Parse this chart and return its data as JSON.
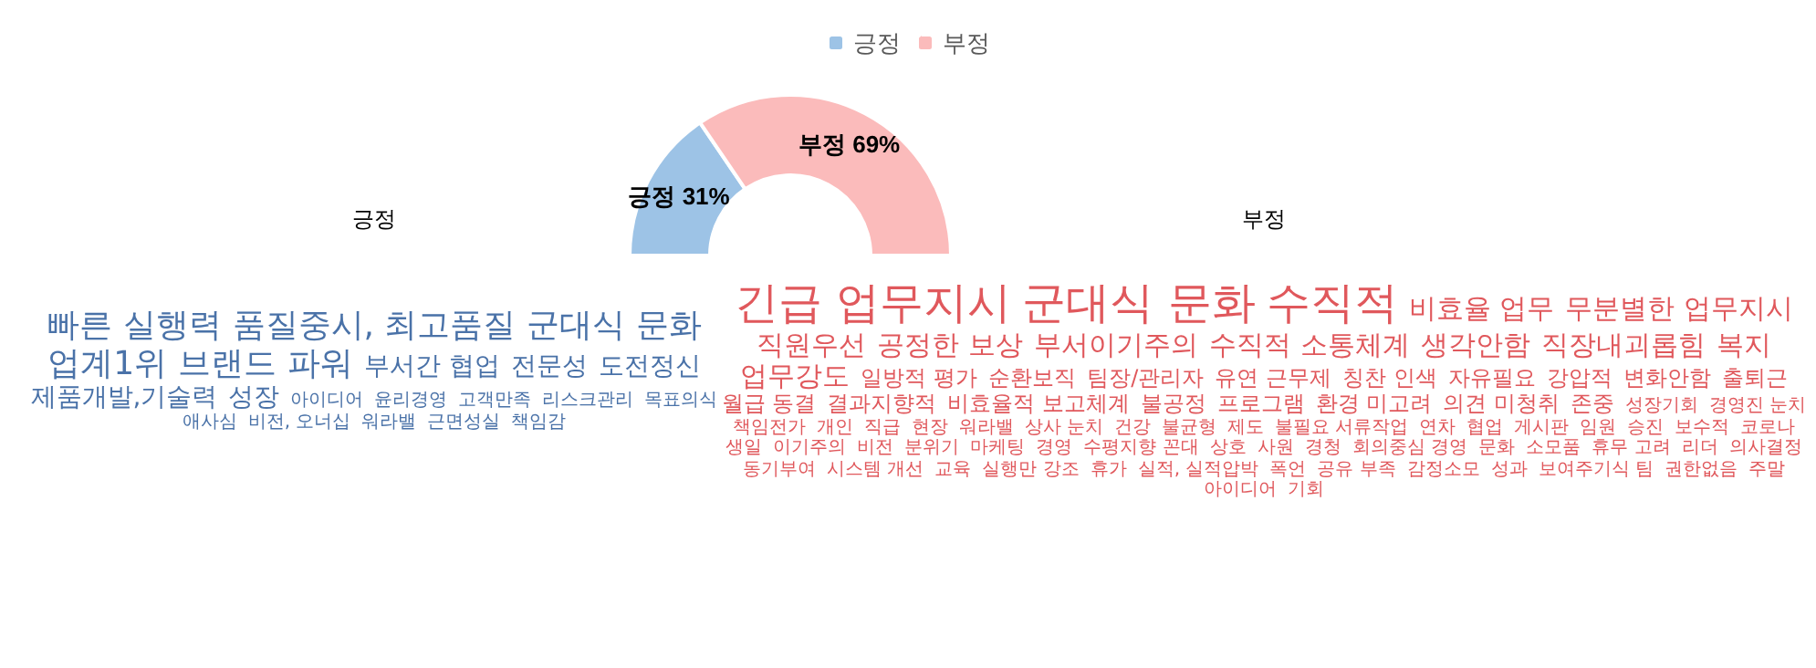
{
  "chart_data": [
    {
      "type": "donut",
      "categories": [
        "긍정",
        "부정"
      ],
      "values": [
        31,
        69
      ],
      "colors": [
        "#9dc3e6",
        "#fbbbbb"
      ],
      "legend": "top",
      "value_labels": [
        "31%",
        "69%"
      ]
    },
    {
      "type": "other",
      "title": "긍정",
      "color": "#4a72a8",
      "annotations": [
        "빠른 실행력",
        "품질중시, 최고품질",
        "군대식 문화",
        "업계1위",
        "브랜드 파워",
        "부서간 협업",
        "전문성",
        "도전정신",
        "제품개발,기술력",
        "성장",
        "아이디어",
        "윤리경영",
        "고객만족",
        "리스크관리",
        "목표의식",
        "애사심",
        "비전, 오너십",
        "워라밸",
        "근면성실",
        "책임감"
      ]
    },
    {
      "type": "other",
      "title": "부정",
      "color": "#e0585c",
      "annotations": [
        "긴급 업무지시",
        "군대식 문화",
        "수직적",
        "비효율 업무",
        "무분별한 업무지시",
        "직원우선",
        "공정한 보상",
        "부서이기주의",
        "수직적 소통체계",
        "생각안함",
        "직장내괴롭힘",
        "복지",
        "업무강도",
        "일방적 평가",
        "순환보직",
        "팀장/관리자",
        "유연 근무제",
        "칭찬 인색",
        "자유필요",
        "강압적",
        "변화안함",
        "출퇴근",
        "월급 동결",
        "결과지향적",
        "비효율적 보고체계",
        "불공정",
        "프로그램",
        "환경 미고려",
        "의견 미청취",
        "존중",
        "성장기회",
        "경영진 눈치",
        "책임전가",
        "개인",
        "직급",
        "현장",
        "워라밸",
        "상사 눈치",
        "건강",
        "불균형",
        "제도",
        "불필요 서류작업",
        "연차",
        "협업",
        "게시판",
        "임원",
        "승진",
        "보수적",
        "코로나",
        "생일",
        "이기주의",
        "비전",
        "분위기",
        "마케팅",
        "경영",
        "수평지향 꼰대",
        "상호",
        "사원",
        "경청",
        "회의중심 경영",
        "문화",
        "소모품",
        "휴무 고려",
        "리더",
        "의사결정",
        "동기부여",
        "시스템 개선",
        "교육",
        "실행만 강조",
        "휴가",
        "실적, 실적압박",
        "폭언",
        "공유 부족",
        "감정소모",
        "성과",
        "보여주기식 팀",
        "권한없음",
        "주말",
        "아이디어",
        "기회"
      ]
    }
  ]
}
